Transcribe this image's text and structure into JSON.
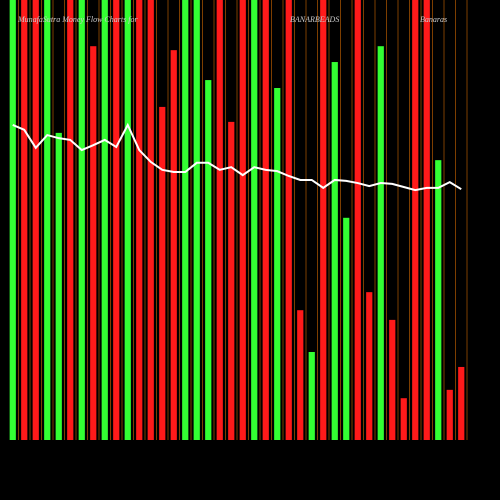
{
  "chart_data": {
    "type": "bar",
    "title": "MunafaSutra Money Flow Charts for",
    "symbol": "BANARBEADS",
    "company": "Banaras",
    "ylim": [
      0,
      100
    ],
    "values": [
      100,
      100,
      100,
      100,
      69.8,
      100,
      100,
      89.5,
      100,
      100,
      100,
      100,
      100,
      75.7,
      88.6,
      100,
      100,
      81.8,
      100,
      72.3,
      100,
      100,
      100,
      80,
      100,
      29.5,
      20,
      100,
      85.9,
      50.5,
      100,
      33.6,
      89.5,
      27.3,
      9.5,
      100,
      100,
      63.6,
      11.4,
      16.6
    ],
    "colors": [
      "#33ff33",
      "#ff1a1a",
      "#ff1a1a",
      "#33ff33",
      "#33ff33",
      "#ff1a1a",
      "#33ff33",
      "#ff1a1a",
      "#33ff33",
      "#ff1a1a",
      "#33ff33",
      "#ff1a1a",
      "#ff1a1a",
      "#ff1a1a",
      "#ff1a1a",
      "#33ff33",
      "#33ff33",
      "#33ff33",
      "#ff1a1a",
      "#ff1a1a",
      "#ff1a1a",
      "#33ff33",
      "#ff1a1a",
      "#33ff33",
      "#ff1a1a",
      "#ff1a1a",
      "#33ff33",
      "#ff1a1a",
      "#33ff33",
      "#33ff33",
      "#ff1a1a",
      "#ff1a1a",
      "#33ff33",
      "#ff1a1a",
      "#ff1a1a",
      "#ff1a1a",
      "#ff1a1a",
      "#33ff33",
      "#ff1a1a",
      "#ff1a1a"
    ],
    "line": {
      "color": "#ffffff",
      "values": [
        71.6,
        70.5,
        66.4,
        69.3,
        68.6,
        68.2,
        65.9,
        67,
        68.2,
        66.6,
        71.6,
        65.9,
        63.2,
        61.4,
        60.9,
        60.9,
        63,
        63,
        61.4,
        62,
        60.2,
        62,
        61.4,
        61.1,
        60,
        59.1,
        59.1,
        57.3,
        59.1,
        58.9,
        58.4,
        57.7,
        58.4,
        58.2,
        57.5,
        56.8,
        57.3,
        57.3,
        58.6,
        57
      ]
    }
  }
}
